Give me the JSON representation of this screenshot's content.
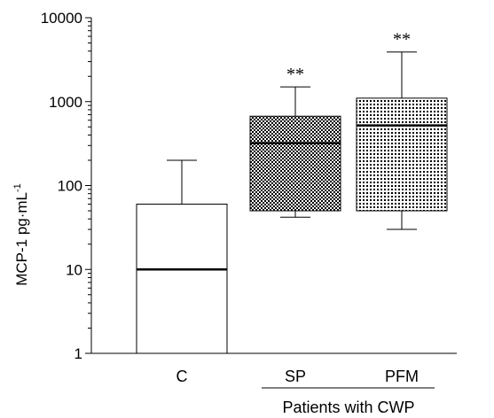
{
  "chart_data": {
    "type": "box",
    "scale": "log",
    "ylim": [
      1,
      10000
    ],
    "yticks": [
      1,
      10,
      100,
      1000,
      10000
    ],
    "ytick_labels": [
      "1",
      "10",
      "100",
      "1000",
      "10000"
    ],
    "ylabel_main": "MCP-1  pg·mL",
    "ylabel_sup": "-1",
    "group_label": "Patients with CWP",
    "boxes": [
      {
        "category": "C",
        "whisker_low": 1,
        "q1": 1,
        "median": 10,
        "q3": 60,
        "whisker_high": 200,
        "pattern": "none",
        "annotation": ""
      },
      {
        "category": "SP",
        "whisker_low": 42,
        "q1": 50,
        "median": 320,
        "q3": 670,
        "whisker_high": 1500,
        "pattern": "checker",
        "annotation": "**"
      },
      {
        "category": "PFM",
        "whisker_low": 30,
        "q1": 50,
        "median": 520,
        "q3": 1100,
        "whisker_high": 3900,
        "pattern": "dots",
        "annotation": "**"
      }
    ]
  }
}
